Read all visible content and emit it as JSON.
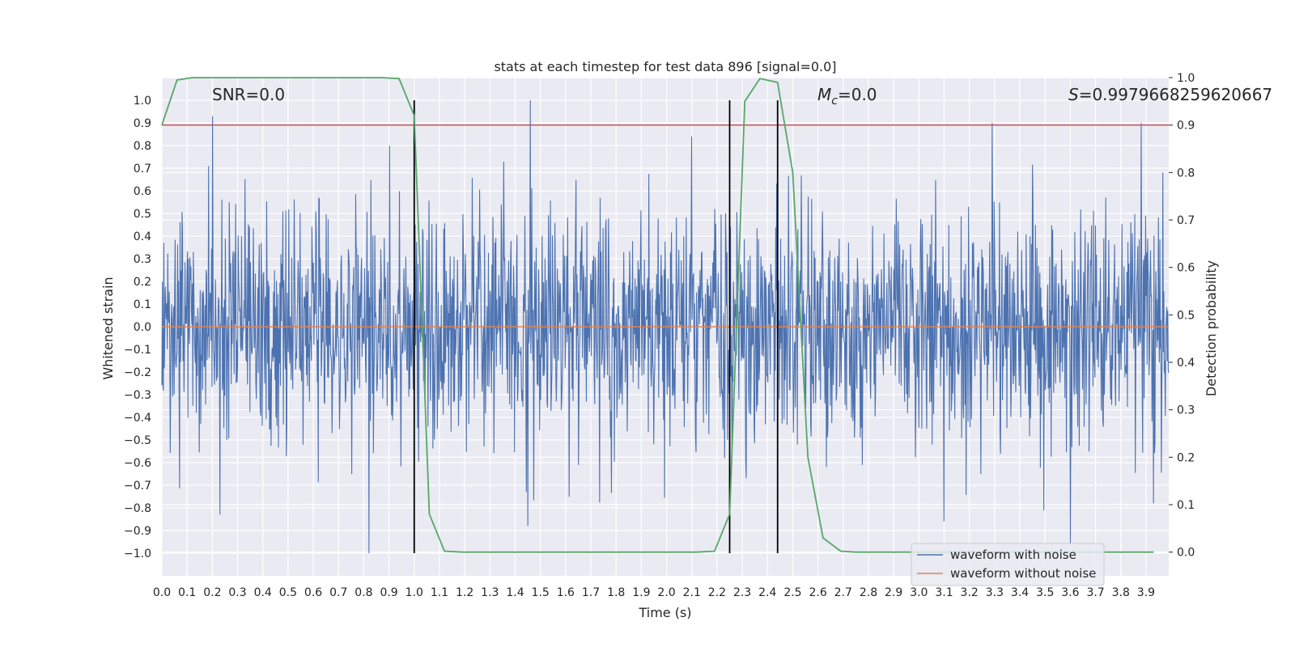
{
  "chart_data": {
    "type": "line",
    "title": "stats at each timestep for test data 896 [signal=0.0]",
    "xlabel": "Time (s)",
    "ylabel": "Whitened strain",
    "y2label": "Detection probability",
    "xlim": [
      0.0,
      3.99
    ],
    "ylim": [
      -1.1,
      1.1
    ],
    "y2lim": [
      -0.05,
      1.0
    ],
    "grid": true,
    "x_ticks": [
      "0.0",
      "0.1",
      "0.2",
      "0.3",
      "0.4",
      "0.5",
      "0.6",
      "0.7",
      "0.8",
      "0.9",
      "1.0",
      "1.1",
      "1.2",
      "1.3",
      "1.4",
      "1.5",
      "1.6",
      "1.7",
      "1.8",
      "1.9",
      "2.0",
      "2.1",
      "2.2",
      "2.3",
      "2.4",
      "2.5",
      "2.6",
      "2.7",
      "2.8",
      "2.9",
      "3.0",
      "3.1",
      "3.2",
      "3.3",
      "3.4",
      "3.5",
      "3.6",
      "3.7",
      "3.8",
      "3.9"
    ],
    "y_ticks": [
      "1.0",
      "0.9",
      "0.8",
      "0.7",
      "0.6",
      "0.5",
      "0.4",
      "0.3",
      "0.2",
      "0.1",
      "0.0",
      "−0.1",
      "−0.2",
      "−0.3",
      "−0.4",
      "−0.5",
      "−0.6",
      "−0.7",
      "−0.8",
      "−0.9",
      "−1.0"
    ],
    "y2_ticks": [
      "1.0",
      "0.9",
      "0.8",
      "0.7",
      "0.6",
      "0.5",
      "0.4",
      "0.3",
      "0.2",
      "0.1",
      "0.0"
    ],
    "annotations": {
      "snr": "SNR=0.0",
      "mc_symbol": "M",
      "mc_sub": "c",
      "mc_value": "=0.0",
      "s_symbol": "S",
      "s_value": "=0.9979668259620667"
    },
    "legend": {
      "placement": "lower right",
      "entries": [
        {
          "label": "waveform with noise",
          "color": "#4c72b0"
        },
        {
          "label": "waveform without noise",
          "color": "#dd8452"
        }
      ]
    },
    "series": [
      {
        "name": "waveform with noise",
        "color": "#4c72b0",
        "axis": "left",
        "samples": 2048,
        "approx_range": [
          -1.0,
          1.0
        ],
        "notable_peaks": [
          {
            "x": 0.2,
            "y": 0.93
          },
          {
            "x": 1.46,
            "y": 1.0
          },
          {
            "x": 2.1,
            "y": 0.84
          },
          {
            "x": 3.29,
            "y": 0.9
          },
          {
            "x": 3.6,
            "y": 0.92
          },
          {
            "x": 3.88,
            "y": 0.9
          },
          {
            "x": 0.82,
            "y": -1.0
          },
          {
            "x": 0.23,
            "y": -0.83
          },
          {
            "x": 1.45,
            "y": -0.88
          },
          {
            "x": 3.1,
            "y": -0.86
          },
          {
            "x": 3.6,
            "y": -0.96
          },
          {
            "x": 3.93,
            "y": -0.78
          }
        ]
      },
      {
        "name": "waveform without noise",
        "color": "#dd8452",
        "axis": "left",
        "x": [
          0.0,
          3.99
        ],
        "y": [
          0.0,
          0.0
        ]
      },
      {
        "name": "detection probability",
        "color": "#55a868",
        "axis": "right",
        "x": [
          0.0,
          0.06,
          0.12,
          0.19,
          0.25,
          0.31,
          0.37,
          0.44,
          0.5,
          0.56,
          0.62,
          0.69,
          0.75,
          0.81,
          0.87,
          0.94,
          1.0,
          1.06,
          1.12,
          1.19,
          1.25,
          1.5,
          1.75,
          2.0,
          2.12,
          2.19,
          2.25,
          2.31,
          2.37,
          2.44,
          2.5,
          2.56,
          2.62,
          2.69,
          2.75,
          3.0,
          3.5,
          3.93
        ],
        "y": [
          0.9,
          0.995,
          1.0,
          1.0,
          1.0,
          1.0,
          1.0,
          1.0,
          1.0,
          1.0,
          1.0,
          1.0,
          1.0,
          1.0,
          1.0,
          0.998,
          0.92,
          0.08,
          0.002,
          0.0,
          0.0,
          0.0,
          0.0,
          0.0,
          0.0,
          0.002,
          0.08,
          0.95,
          0.998,
          0.99,
          0.8,
          0.2,
          0.03,
          0.002,
          0.0,
          0.0,
          0.0,
          0.0
        ]
      }
    ],
    "threshold": {
      "axis": "right",
      "y": 0.9,
      "color": "#c44e52"
    },
    "vlines": [
      {
        "x": 1.0,
        "color": "#000000"
      },
      {
        "x": 2.25,
        "color": "#000000"
      },
      {
        "x": 2.44,
        "color": "#000000"
      }
    ]
  }
}
